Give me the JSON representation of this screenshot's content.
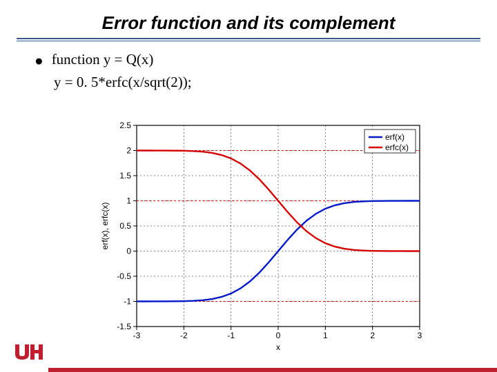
{
  "title": "Error function and its complement",
  "bullet1": "function y = Q(x)",
  "bullet2": "y = 0. 5*erfc(x/sqrt(2));",
  "chart": {
    "type": "line",
    "xlabel": "x",
    "ylabel": "erf(x), erfc(x)",
    "xlim": [
      -3,
      3
    ],
    "ylim": [
      -1.5,
      2.5
    ],
    "xtick_step": 1,
    "ytick_step": 0.5,
    "xticks": [
      "-3",
      "-2",
      "-1",
      "0",
      "1",
      "2",
      "3"
    ],
    "yticks": [
      "-1.5",
      "-1",
      "-0.5",
      "0",
      "0.5",
      "1",
      "1.5",
      "2",
      "2.5"
    ],
    "label_fontsize": 12,
    "tick_fontsize": 12,
    "background_color": "#ffffff",
    "axis_color": "#000000",
    "grid_major_color": "#000000",
    "grid_major_dash": "2 3",
    "series": [
      {
        "name": "erf(x)",
        "color": "#0018c8",
        "line_width": 2.4,
        "x": [
          -3,
          -2.8,
          -2.6,
          -2.4,
          -2.2,
          -2,
          -1.8,
          -1.6,
          -1.4,
          -1.2,
          -1,
          -0.8,
          -0.6,
          -0.4,
          -0.2,
          0,
          0.2,
          0.4,
          0.6,
          0.8,
          1,
          1.2,
          1.4,
          1.6,
          1.8,
          2,
          2.2,
          2.4,
          2.6,
          2.8,
          3
        ],
        "y": [
          -0.99998,
          -0.99992,
          -0.99976,
          -0.99931,
          -0.99814,
          -0.99532,
          -0.98909,
          -0.97635,
          -0.95229,
          -0.91031,
          -0.8427,
          -0.7421,
          -0.6039,
          -0.4284,
          -0.2227,
          0,
          0.2227,
          0.4284,
          0.6039,
          0.7421,
          0.8427,
          0.91031,
          0.95229,
          0.97635,
          0.98909,
          0.99532,
          0.99814,
          0.99931,
          0.99976,
          0.99992,
          0.99998
        ]
      },
      {
        "name": "erfc(x)",
        "color": "#d40000",
        "line_width": 2.4,
        "x": [
          -3,
          -2.8,
          -2.6,
          -2.4,
          -2.2,
          -2,
          -1.8,
          -1.6,
          -1.4,
          -1.2,
          -1,
          -0.8,
          -0.6,
          -0.4,
          -0.2,
          0,
          0.2,
          0.4,
          0.6,
          0.8,
          1,
          1.2,
          1.4,
          1.6,
          1.8,
          2,
          2.2,
          2.4,
          2.6,
          2.8,
          3
        ],
        "y": [
          1.99998,
          1.99992,
          1.99976,
          1.99931,
          1.99814,
          1.99532,
          1.98909,
          1.97635,
          1.95229,
          1.91031,
          1.8427,
          1.7421,
          1.6039,
          1.4284,
          1.2227,
          1,
          0.7773,
          0.5716,
          0.3961,
          0.2579,
          0.1573,
          0.08969,
          0.04771,
          0.02365,
          0.01091,
          0.00468,
          0.00186,
          0.00069,
          0.00024,
          8e-05,
          2e-05
        ]
      }
    ],
    "asymptotes": [
      {
        "y": 1,
        "color": "#d40000",
        "dash": "3 3",
        "width": 1
      },
      {
        "y": -1,
        "color": "#d40000",
        "dash": "3 3",
        "width": 1
      },
      {
        "y": 2,
        "color": "#d40000",
        "dash": "3 3",
        "width": 1
      }
    ],
    "legend": {
      "position": "upper-right",
      "entries": [
        "erf(x)",
        "erfc(x)"
      ]
    }
  },
  "colors": {
    "rule": "#37568e",
    "footer_bar": "#be1e2d"
  }
}
